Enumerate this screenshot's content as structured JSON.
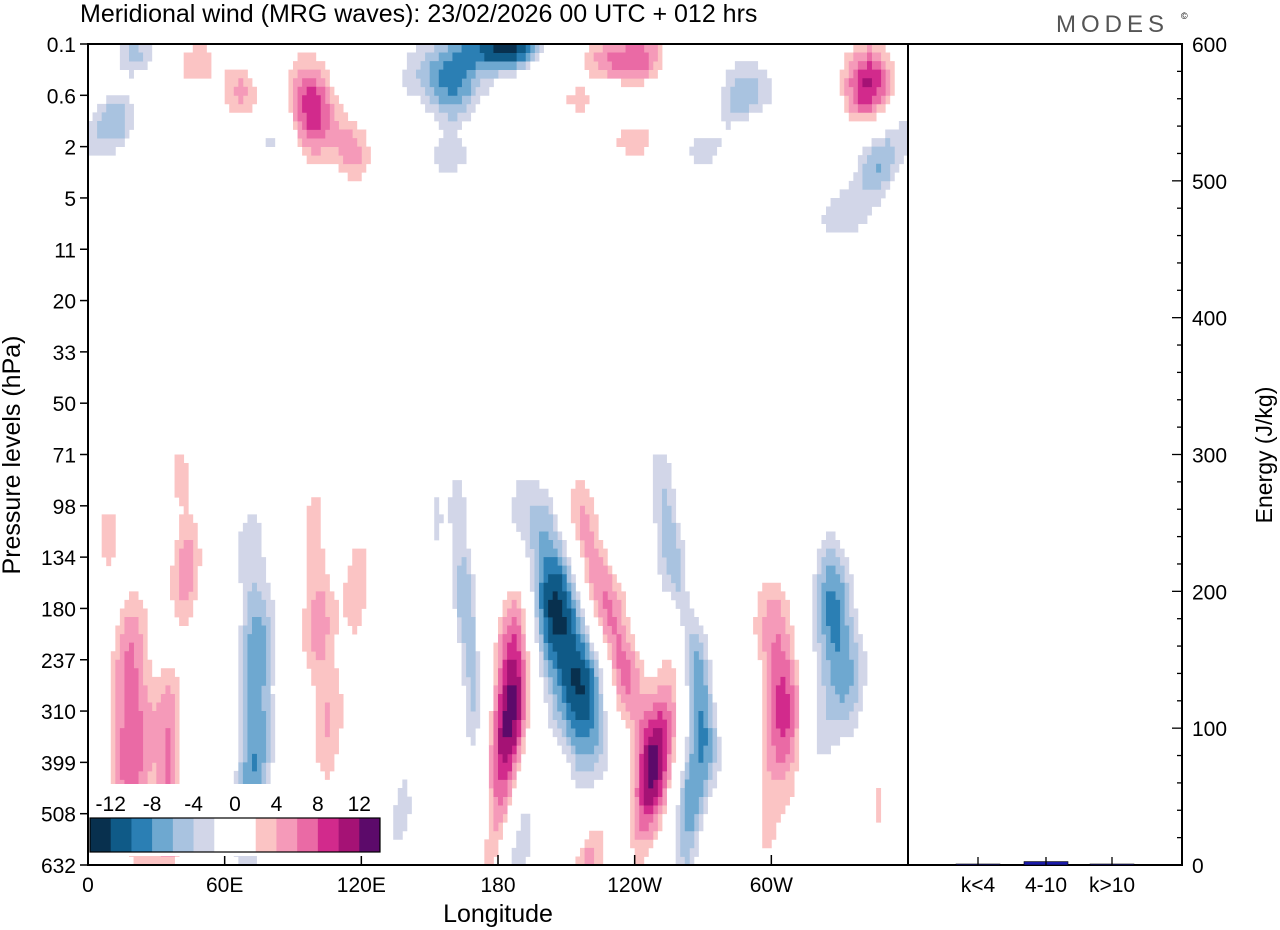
{
  "header": {
    "title": "Meridional wind (MRG waves):  23/02/2026  00 UTC  + 012 hrs",
    "brand": "MODES",
    "brand_mark": "©"
  },
  "chart_data": [
    {
      "id": "hovmoller",
      "type": "heatmap",
      "title": "Meridional wind (MRG waves)",
      "xlabel": "Longitude",
      "ylabel": "Pressure levels (hPa)",
      "x_ticks": [
        {
          "deg": 0,
          "label": "0"
        },
        {
          "deg": 60,
          "label": "60E"
        },
        {
          "deg": 120,
          "label": "120E"
        },
        {
          "deg": 180,
          "label": "180"
        },
        {
          "deg": 240,
          "label": "120W"
        },
        {
          "deg": 300,
          "label": "60W"
        }
      ],
      "xlim": [
        0,
        360
      ],
      "y_levels": [
        "0.1",
        "0.6",
        "2",
        "5",
        "11",
        "20",
        "33",
        "50",
        "71",
        "98",
        "134",
        "180",
        "237",
        "310",
        "399",
        "508",
        "632"
      ],
      "contour_levels": [
        -14,
        -12,
        -10,
        -8,
        -6,
        -4,
        -2,
        2,
        4,
        6,
        8,
        10,
        12,
        14
      ],
      "colorbar": {
        "labels": [
          "-12",
          "-8",
          "-4",
          "0",
          "4",
          "8",
          "12"
        ],
        "colors": [
          "#08304e",
          "#0f5a87",
          "#2b7fb4",
          "#6ea8d0",
          "#a9c3e0",
          "#d2d6e8",
          "#ffffff",
          "#ffffff",
          "#fbc4c4",
          "#f59ab9",
          "#ea6aa5",
          "#d22a8c",
          "#a51275",
          "#5c0a6a"
        ]
      },
      "features": [
        {
          "lon": 20,
          "lev": 12.8,
          "value": 8,
          "lon_w": 7,
          "lev_w": 1.7,
          "tilt": 1.5
        },
        {
          "lon": 17,
          "lev": 14.8,
          "value": 5,
          "lon_w": 6,
          "lev_w": 1.4,
          "tilt": 2
        },
        {
          "lon": 35,
          "lev": 14.5,
          "value": 7,
          "lon_w": 4,
          "lev_w": 2,
          "tilt": 0.5
        },
        {
          "lon": 42,
          "lev": 10.3,
          "value": 7,
          "lon_w": 5,
          "lev_w": 1,
          "tilt": 0
        },
        {
          "lon": 40,
          "lev": 8.4,
          "value": 5,
          "lon_w": 4,
          "lev_w": 0.5,
          "tilt": 0
        },
        {
          "lon": 8,
          "lev": 9.5,
          "value": 4,
          "lon_w": 4,
          "lev_w": 0.8,
          "tilt": 0
        },
        {
          "lon": 73,
          "lev": 12.2,
          "value": -9,
          "lon_w": 6,
          "lev_w": 2.4,
          "tilt": 0.5
        },
        {
          "lon": 68,
          "lev": 15.2,
          "value": -5,
          "lon_w": 5,
          "lev_w": 1.2,
          "tilt": -1
        },
        {
          "lon": 102,
          "lev": 11.8,
          "value": 7,
          "lon_w": 6,
          "lev_w": 2.3,
          "tilt": 1
        },
        {
          "lon": 118,
          "lev": 10.8,
          "value": 5,
          "lon_w": 5,
          "lev_w": 1,
          "tilt": 0
        },
        {
          "lon": 136,
          "lev": 14.5,
          "value": -4,
          "lon_w": 6,
          "lev_w": 2,
          "tilt": 0
        },
        {
          "lon": 152,
          "lev": 9.2,
          "value": -4,
          "lon_w": 3,
          "lev_w": 0.8,
          "tilt": 0
        },
        {
          "lon": 166,
          "lev": 11.2,
          "value": -8,
          "lon_w": 4,
          "lev_w": 2,
          "tilt": 1.5
        },
        {
          "lon": 186,
          "lev": 12.7,
          "value": 14,
          "lon_w": 6,
          "lev_w": 1.6,
          "tilt": -1.5
        },
        {
          "lon": 180,
          "lev": 15.3,
          "value": 5,
          "lon_w": 5,
          "lev_w": 1.2,
          "tilt": -3
        },
        {
          "lon": 210,
          "lev": 11.7,
          "value": -15,
          "lon_w": 10,
          "lev_w": 2.2,
          "tilt": 5
        },
        {
          "lon": 188,
          "lev": 15.7,
          "value": -7,
          "lon_w": 6,
          "lev_w": 1.2,
          "tilt": -3
        },
        {
          "lon": 228,
          "lev": 11.2,
          "value": 10,
          "lon_w": 7,
          "lev_w": 2.2,
          "tilt": 6
        },
        {
          "lon": 248,
          "lev": 14.2,
          "value": 11,
          "lon_w": 6,
          "lev_w": 1.6,
          "tilt": -4
        },
        {
          "lon": 221,
          "lev": 15.9,
          "value": 7,
          "lon_w": 6,
          "lev_w": 1.3,
          "tilt": -4
        },
        {
          "lon": 265,
          "lev": 11.8,
          "value": -8,
          "lon_w": 5,
          "lev_w": 2.2,
          "tilt": 4
        },
        {
          "lon": 265,
          "lev": 15,
          "value": -9,
          "lon_w": 5,
          "lev_w": 1.4,
          "tilt": -2
        },
        {
          "lon": 252,
          "lev": 8.8,
          "value": -3,
          "lon_w": 6,
          "lev_w": 1,
          "tilt": 0
        },
        {
          "lon": 305,
          "lev": 12.5,
          "value": 9,
          "lon_w": 7,
          "lev_w": 1.8,
          "tilt": 3
        },
        {
          "lon": 300,
          "lev": 14.8,
          "value": 4,
          "lon_w": 6,
          "lev_w": 1.3,
          "tilt": -2
        },
        {
          "lon": 330,
          "lev": 11.5,
          "value": -11,
          "lon_w": 7,
          "lev_w": 1.4,
          "tilt": 2
        },
        {
          "lon": 322,
          "lev": 14,
          "value": -5,
          "lon_w": 6,
          "lev_w": 1.2,
          "tilt": 0
        },
        {
          "lon": 348,
          "lev": 14.5,
          "value": 4,
          "lon_w": 4,
          "lev_w": 1,
          "tilt": 0
        },
        {
          "lon": 352,
          "lev": 9.3,
          "value": 4,
          "lon_w": 5,
          "lev_w": 0.6,
          "tilt": 0
        },
        {
          "lon": 20,
          "lev": 0.1,
          "value": -6,
          "lon_w": 8,
          "lev_w": 0.3,
          "tilt": 0
        },
        {
          "lon": 10,
          "lev": 1.5,
          "value": -7,
          "lon_w": 9,
          "lev_w": 0.5,
          "tilt": 0
        },
        {
          "lon": 45,
          "lev": 0.3,
          "value": 5,
          "lon_w": 8,
          "lev_w": 0.45,
          "tilt": 0
        },
        {
          "lon": 65,
          "lev": 0.8,
          "value": 7,
          "lon_w": 6,
          "lev_w": 0.45,
          "tilt": 0
        },
        {
          "lon": 97,
          "lev": 1.1,
          "value": 11,
          "lon_w": 8,
          "lev_w": 0.7,
          "tilt": 2
        },
        {
          "lon": 115,
          "lev": 2,
          "value": 7,
          "lon_w": 7,
          "lev_w": 0.5,
          "tilt": 0
        },
        {
          "lon": 30,
          "lev": 2.2,
          "value": 4,
          "lon_w": 10,
          "lev_w": 0.3,
          "tilt": 0
        },
        {
          "lon": 80,
          "lev": 1.8,
          "value": -4,
          "lon_w": 6,
          "lev_w": 0.3,
          "tilt": 0
        },
        {
          "lon": 158,
          "lev": 0.6,
          "value": -11,
          "lon_w": 12,
          "lev_w": 0.6,
          "tilt": 0
        },
        {
          "lon": 183,
          "lev": 0,
          "value": -14,
          "lon_w": 12,
          "lev_w": 0.3,
          "tilt": 0
        },
        {
          "lon": 162,
          "lev": 2.2,
          "value": -5,
          "lon_w": 10,
          "lev_w": 0.3,
          "tilt": 0
        },
        {
          "lon": 180,
          "lev": 2.4,
          "value": 5,
          "lon_w": 6,
          "lev_w": 0.3,
          "tilt": 0
        },
        {
          "lon": 212,
          "lev": 1,
          "value": 5,
          "lon_w": 8,
          "lev_w": 0.3,
          "tilt": 0
        },
        {
          "lon": 236,
          "lev": 0.2,
          "value": 10,
          "lon_w": 13,
          "lev_w": 0.35,
          "tilt": 0
        },
        {
          "lon": 238,
          "lev": 1.8,
          "value": 6,
          "lon_w": 9,
          "lev_w": 0.3,
          "tilt": 0
        },
        {
          "lon": 268,
          "lev": 2,
          "value": -5,
          "lon_w": 8,
          "lev_w": 0.3,
          "tilt": 0
        },
        {
          "lon": 290,
          "lev": 0.9,
          "value": -7,
          "lon_w": 10,
          "lev_w": 0.6,
          "tilt": 0
        },
        {
          "lon": 343,
          "lev": 0.7,
          "value": 12,
          "lon_w": 9,
          "lev_w": 0.6,
          "tilt": 0
        },
        {
          "lon": 298,
          "lev": 1.8,
          "value": 5,
          "lon_w": 7,
          "lev_w": 0.3,
          "tilt": 0
        },
        {
          "lon": 348,
          "lev": 2.2,
          "value": -7,
          "lon_w": 9,
          "lev_w": 0.6,
          "tilt": 0
        },
        {
          "lon": 334,
          "lev": 3.3,
          "value": -5,
          "lon_w": 10,
          "lev_w": 0.5,
          "tilt": 0
        },
        {
          "lon": 38,
          "lev": 3.3,
          "value": 3,
          "lon_w": 25,
          "lev_w": 0.35,
          "tilt": 0
        },
        {
          "lon": 125,
          "lev": 4.3,
          "value": 3,
          "lon_w": 6,
          "lev_w": 0.4,
          "tilt": 0
        },
        {
          "lon": 240,
          "lev": 4.4,
          "value": -3,
          "lon_w": 6,
          "lev_w": 0.5,
          "tilt": 0
        },
        {
          "lon": 330,
          "lev": 4.8,
          "value": -3,
          "lon_w": 12,
          "lev_w": 0.6,
          "tilt": 0
        },
        {
          "lon": 295,
          "lev": 5.7,
          "value": 3,
          "lon_w": 8,
          "lev_w": 0.3,
          "tilt": 0
        },
        {
          "lon": 8,
          "lev": 5.7,
          "value": -3,
          "lon_w": 5,
          "lev_w": 0.3,
          "tilt": 0
        }
      ]
    },
    {
      "id": "energy",
      "type": "bar",
      "ylabel": "Energy (J/kg)",
      "ylim": [
        0,
        600
      ],
      "y_ticks": [
        0,
        100,
        200,
        300,
        400,
        500,
        600
      ],
      "categories": [
        "k<4",
        "4-10",
        "k>10"
      ],
      "values": [
        0.3,
        2.5,
        0.3
      ],
      "bar_color": "#1a1aa8"
    }
  ]
}
